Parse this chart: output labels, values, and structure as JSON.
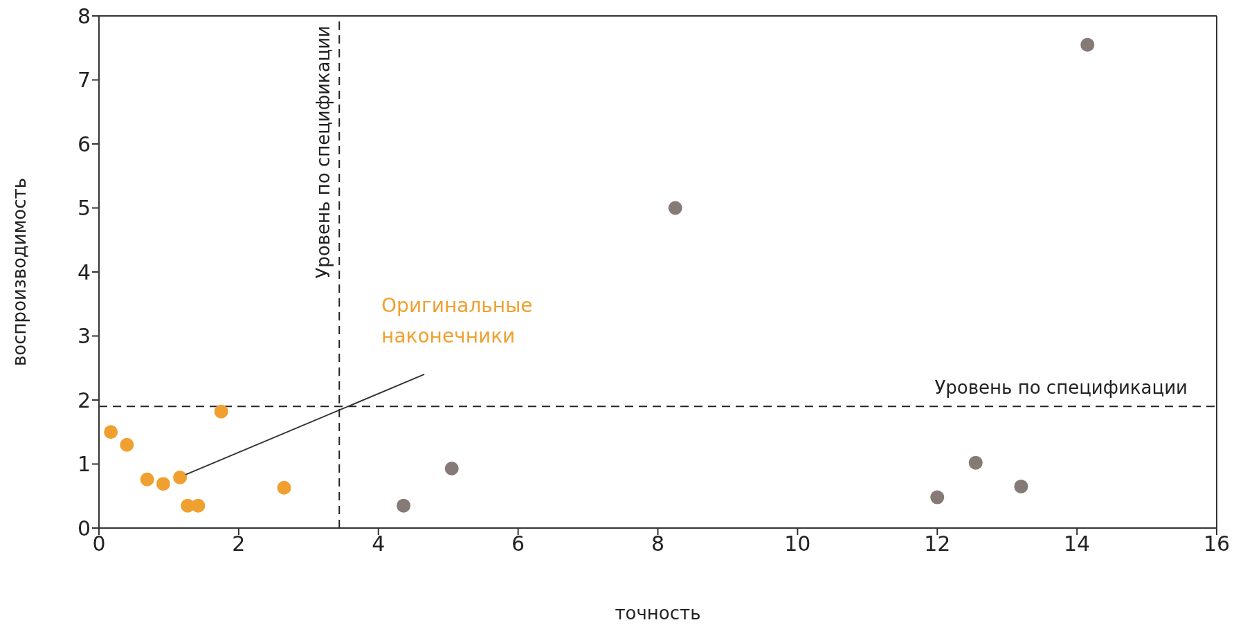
{
  "chart_data": {
    "type": "scatter",
    "xlabel": "точность",
    "ylabel": "воспроизводимость",
    "xlim": [
      0,
      16
    ],
    "ylim": [
      0,
      8
    ],
    "xticks": [
      0,
      2,
      4,
      6,
      8,
      10,
      12,
      14,
      16
    ],
    "yticks": [
      0,
      1,
      2,
      3,
      4,
      5,
      6,
      7,
      8
    ],
    "grid": false,
    "marker": "circle",
    "series": [
      {
        "color": "#f0a030",
        "x": [
          0.17,
          0.4,
          0.69,
          0.92,
          1.16,
          1.27,
          1.42,
          1.75,
          2.65
        ],
        "values": [
          1.5,
          1.3,
          0.76,
          0.69,
          0.79,
          0.35,
          0.35,
          1.82,
          0.63
        ]
      },
      {
        "color": "#857a76",
        "x": [
          4.36,
          5.05,
          8.25,
          12.0,
          12.55,
          13.2,
          14.15
        ],
        "values": [
          0.35,
          0.93,
          5.0,
          0.48,
          1.02,
          0.65,
          7.55
        ]
      }
    ],
    "ref_lines": [
      {
        "axis": "x",
        "value": 3.44,
        "label": "Уровень по спецификации",
        "line_style": "dashed",
        "color": "#222222"
      },
      {
        "axis": "y",
        "value": 1.9,
        "label": "Уровень по спецификации",
        "line_style": "dashed",
        "color": "#222222"
      }
    ],
    "annotations": [
      "Оригинальные наконечники"
    ]
  }
}
